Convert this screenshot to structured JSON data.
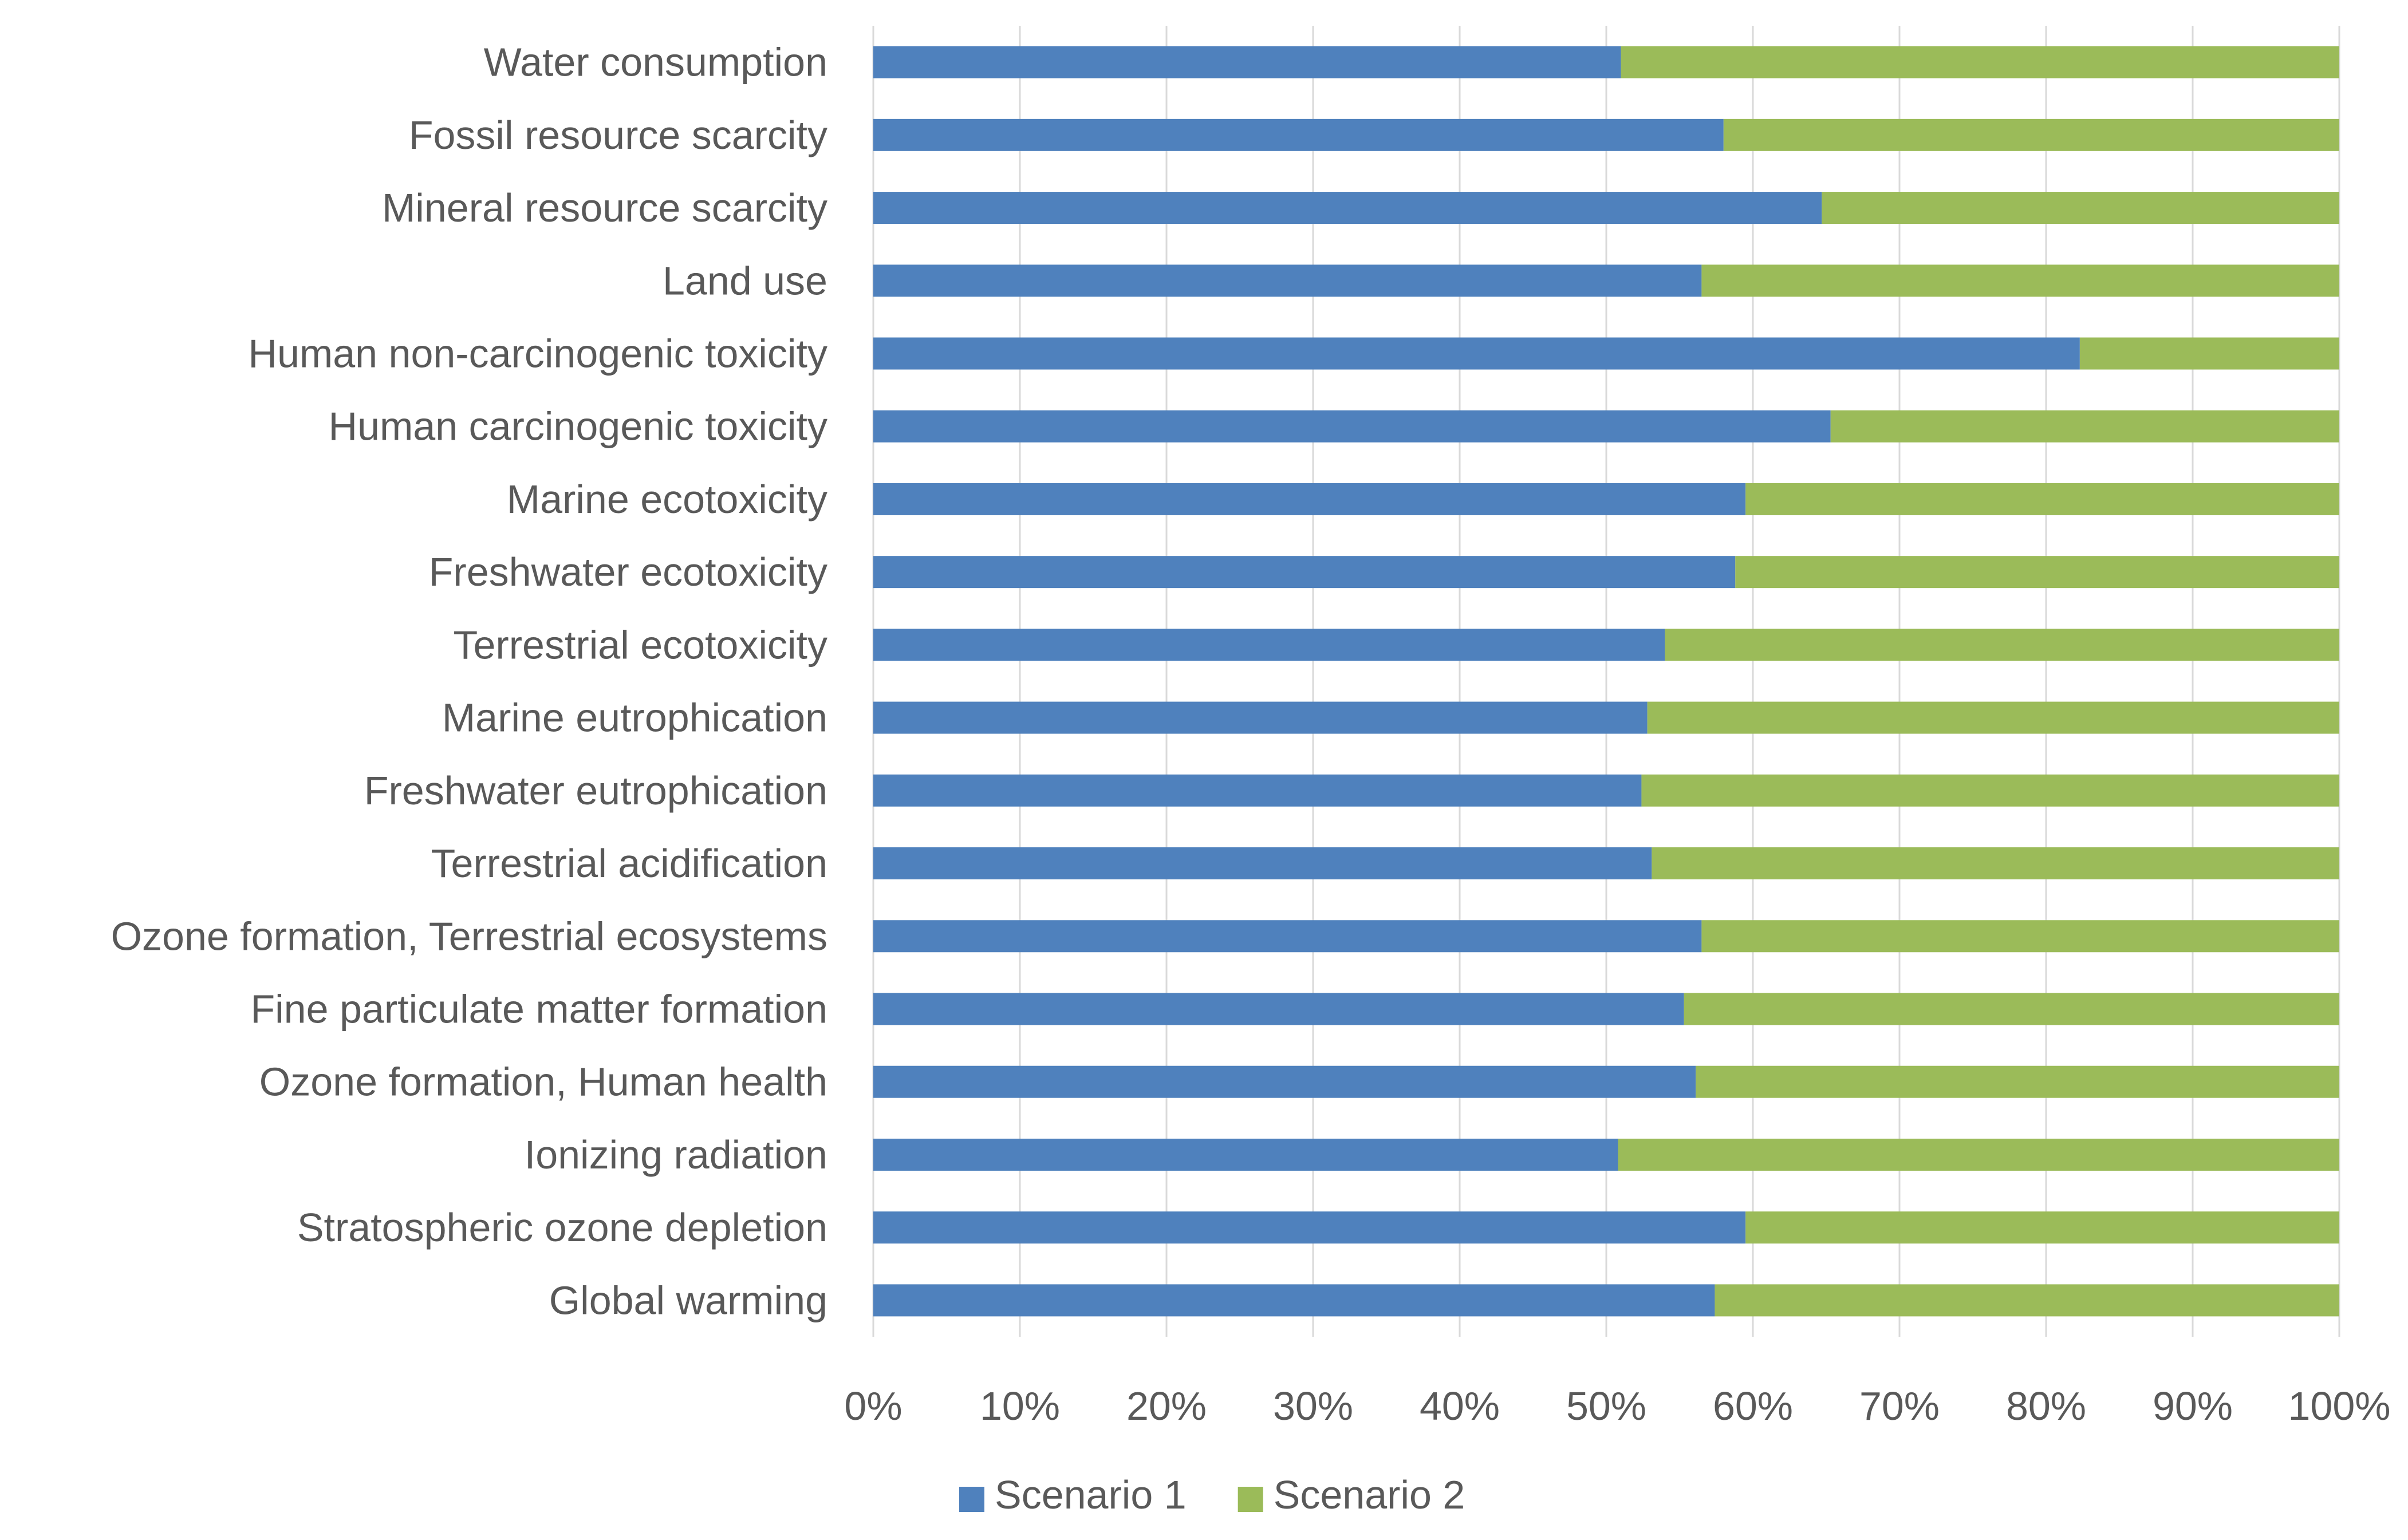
{
  "chart_data": {
    "type": "bar",
    "orientation": "horizontal",
    "stacked": "percent",
    "title": "",
    "xlabel": "",
    "ylabel": "",
    "xlim": [
      0,
      100
    ],
    "grid": true,
    "legend_position": "bottom",
    "categories": [
      "Water consumption",
      "Fossil resource scarcity",
      "Mineral resource scarcity",
      "Land use",
      "Human non-carcinogenic toxicity",
      "Human carcinogenic toxicity",
      "Marine ecotoxicity",
      "Freshwater ecotoxicity",
      "Terrestrial ecotoxicity",
      "Marine eutrophication",
      "Freshwater eutrophication",
      "Terrestrial acidification",
      "Ozone formation, Terrestrial ecosystems",
      "Fine particulate matter formation",
      "Ozone formation, Human health",
      "Ionizing radiation",
      "Stratospheric ozone depletion",
      "Global warming"
    ],
    "series": [
      {
        "name": "Scenario 1",
        "color": "#4f81bd",
        "values": [
          51,
          58,
          64.7,
          56.5,
          82.3,
          65.3,
          59.5,
          58.8,
          54,
          52.8,
          52.4,
          53.1,
          56.5,
          55.3,
          56.1,
          50.8,
          59.5,
          57.4
        ]
      },
      {
        "name": "Scenario 2",
        "color": "#9bbb59",
        "values": [
          49,
          42,
          35.3,
          43.5,
          17.7,
          34.7,
          40.5,
          41.2,
          46,
          47.2,
          47.6,
          46.9,
          43.5,
          44.7,
          43.9,
          49.2,
          40.5,
          42.6
        ]
      }
    ],
    "x_ticks": [
      "0%",
      "10%",
      "20%",
      "30%",
      "40%",
      "50%",
      "60%",
      "70%",
      "80%",
      "90%",
      "100%"
    ]
  }
}
